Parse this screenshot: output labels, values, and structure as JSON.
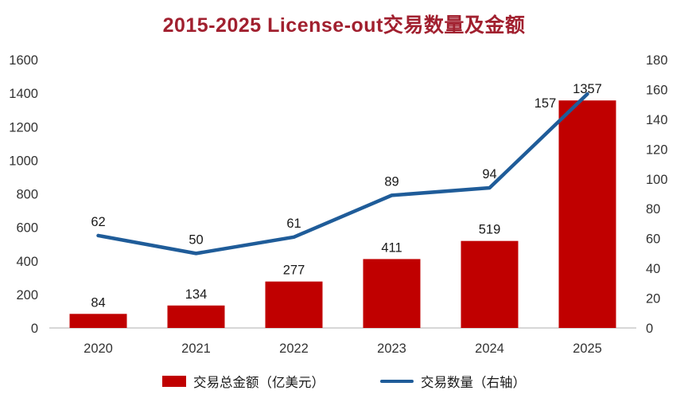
{
  "title": "2015-2025 License-out交易数量及金额",
  "colors": {
    "title": "#A1202F",
    "bar": "#C00000",
    "line": "#1F5C99",
    "axis_text": "#333333",
    "axis_line": "#BFBFBF",
    "label_text": "#1a1a1a"
  },
  "chart_data": {
    "type": "bar",
    "subtype": "combo-bar-line",
    "title": "2015-2025 License-out交易数量及金额",
    "categories": [
      "2020",
      "2021",
      "2022",
      "2023",
      "2024",
      "2025"
    ],
    "series": [
      {
        "name": "交易总金额（亿美元）",
        "type": "bar",
        "axis": "left",
        "color": "#C00000",
        "values": [
          84,
          134,
          277,
          411,
          519,
          1357
        ]
      },
      {
        "name": "交易数量（右轴）",
        "type": "line",
        "axis": "right",
        "color": "#1F5C99",
        "values": [
          62,
          50,
          61,
          89,
          94,
          157
        ]
      }
    ],
    "left_axis": {
      "min": 0,
      "max": 1600,
      "step": 200,
      "ticks": [
        0,
        200,
        400,
        600,
        800,
        1000,
        1200,
        1400,
        1600
      ]
    },
    "right_axis": {
      "min": 0,
      "max": 180,
      "step": 20,
      "ticks": [
        0,
        20,
        40,
        60,
        80,
        100,
        120,
        140,
        160,
        180
      ]
    },
    "grid": false,
    "data_labels": true,
    "legend_position": "bottom"
  },
  "legend": {
    "bar_label": "交易总金额（亿美元）",
    "line_label": "交易数量（右轴）"
  }
}
